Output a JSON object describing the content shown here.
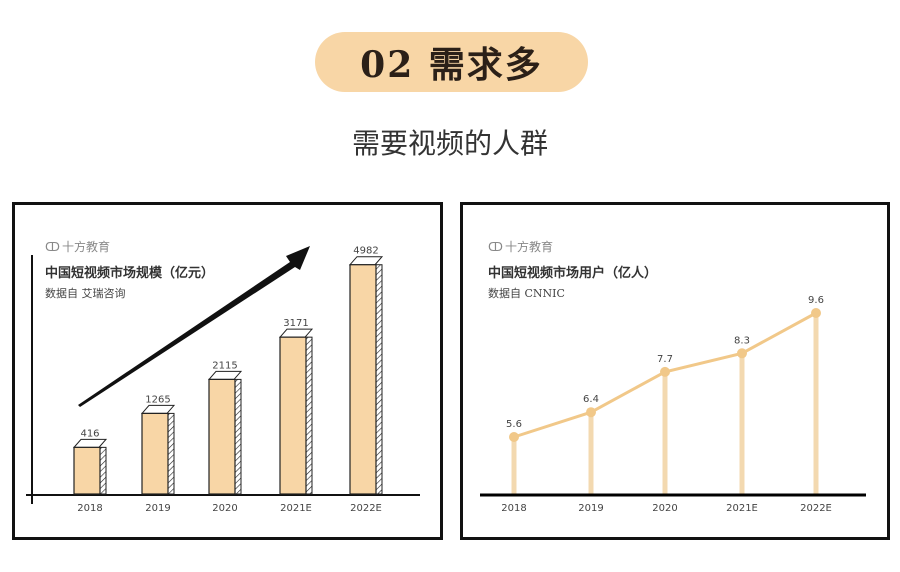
{
  "header": {
    "badge": "02 需求多",
    "subtitle": "需要视频的人群"
  },
  "colors": {
    "bar_fill": "#f8d6a6",
    "line": "#f1c889",
    "badge": "#f8d6a6"
  },
  "chart_data": [
    {
      "type": "bar",
      "logo": "十方教育",
      "title": "中国短视频市场规模（亿元）",
      "source": "数据自  艾瑞咨询",
      "categories": [
        "2018",
        "2019",
        "2020",
        "2021E",
        "2022E"
      ],
      "values": [
        416,
        1265,
        2115,
        3171,
        4982
      ],
      "grid": false,
      "style": "3d-bars-with-rising-arrow"
    },
    {
      "type": "line",
      "logo": "十方教育",
      "title": "中国短视频市场用户（亿人）",
      "source": "数据自  CNNIC",
      "categories": [
        "2018",
        "2019",
        "2020",
        "2021E",
        "2022E"
      ],
      "values": [
        5.6,
        6.4,
        7.7,
        8.3,
        9.6
      ],
      "grid": false,
      "style": "line-with-drop-stems"
    }
  ]
}
